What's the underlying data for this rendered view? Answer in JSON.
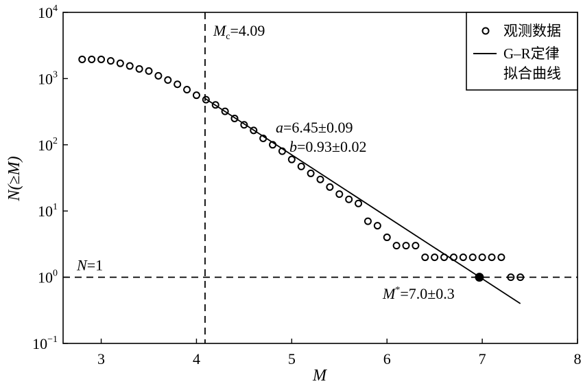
{
  "chart_data": {
    "type": "scatter",
    "xlabel": "M",
    "ylabel": "N(≥M)",
    "xlim": [
      2.6,
      8
    ],
    "ylim": [
      0.1,
      10000
    ],
    "y_scale": "log",
    "x_ticks": [
      "3",
      "4",
      "5",
      "6",
      "7",
      "8"
    ],
    "y_ticks": [
      {
        "base": "10",
        "exp": "−1"
      },
      {
        "base": "10",
        "exp": "0"
      },
      {
        "base": "10",
        "exp": "1"
      },
      {
        "base": "10",
        "exp": "2"
      },
      {
        "base": "10",
        "exp": "3"
      },
      {
        "base": "10",
        "exp": "4"
      }
    ],
    "legend": {
      "placement": "top-right",
      "observed_label": "观测数据",
      "fit_label_line1": "G–R定律",
      "fit_label_line2": "拟合曲线"
    },
    "observed": {
      "x": [
        2.8,
        2.9,
        3.0,
        3.1,
        3.2,
        3.3,
        3.4,
        3.5,
        3.6,
        3.7,
        3.8,
        3.9,
        4.0,
        4.1,
        4.2,
        4.3,
        4.4,
        4.5,
        4.6,
        4.7,
        4.8,
        4.9,
        5.0,
        5.1,
        5.2,
        5.3,
        5.4,
        5.5,
        5.6,
        5.7,
        5.8,
        5.9,
        6.0,
        6.1,
        6.2,
        6.3,
        6.4,
        6.5,
        6.6,
        6.7,
        6.8,
        6.9,
        7.0,
        7.1,
        7.2,
        7.3,
        7.4
      ],
      "y": [
        1950,
        1950,
        1950,
        1850,
        1700,
        1550,
        1400,
        1300,
        1100,
        950,
        820,
        680,
        560,
        480,
        400,
        320,
        250,
        200,
        165,
        125,
        100,
        80,
        60,
        47,
        37,
        30,
        23,
        18,
        15,
        13,
        7,
        6,
        4,
        3,
        3,
        3,
        2,
        2,
        2,
        2,
        2,
        2,
        2,
        2,
        2,
        1,
        1
      ]
    },
    "fit": {
      "x": [
        4.09,
        7.4
      ],
      "y": [
        501,
        0.4
      ],
      "a_label": "a",
      "a_value": "=6.45±0.09",
      "b_label": "b",
      "b_value": "=0.93±0.02"
    },
    "mc": {
      "value": 4.09,
      "label": "M",
      "sub": "c",
      "value_text": "=4.09"
    },
    "n1": {
      "value": 1,
      "label": "N",
      "value_text": "=1"
    },
    "mstar": {
      "x": 6.97,
      "y": 1,
      "label": "M",
      "sup": "*",
      "value_text": "=7.0±0.3"
    },
    "grid": false
  }
}
